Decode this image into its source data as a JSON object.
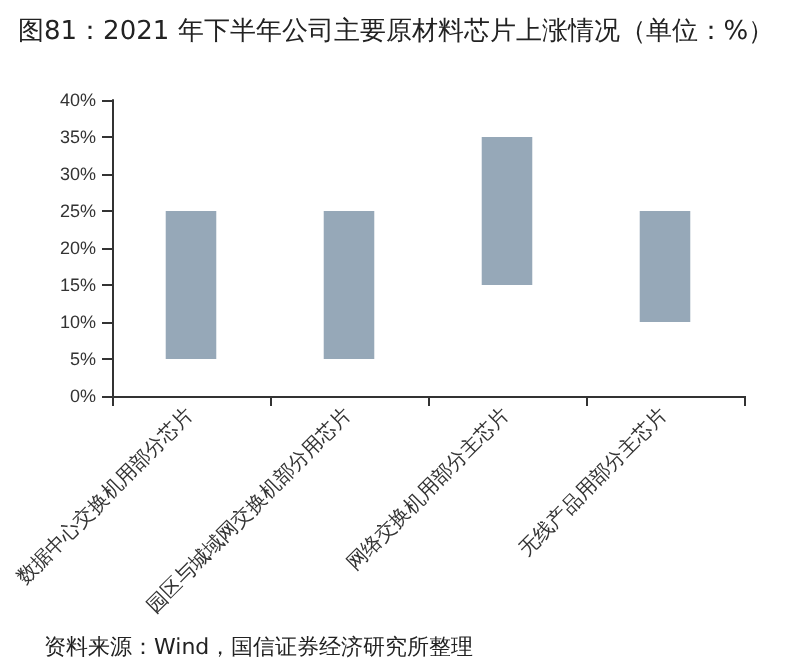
{
  "chart_data": {
    "type": "bar",
    "title": "图81：2021 年下半年公司主要原材料芯片上涨情况（单位：%）",
    "categories": [
      "数据中心交换机用部分芯片",
      "园区与城域网交换机部分用芯片",
      "网络交换机用部分主芯片",
      "无线产品用部分主芯片"
    ],
    "values": [
      20,
      20,
      20,
      15
    ],
    "base": [
      5,
      5,
      15,
      10
    ],
    "color": "#96a8b8",
    "ylim": [
      0,
      40
    ],
    "yticks": [
      {
        "value": 0,
        "label": "0%"
      },
      {
        "value": 5,
        "label": "5%"
      },
      {
        "value": 10,
        "label": "10%"
      },
      {
        "value": 15,
        "label": "15%"
      },
      {
        "value": 20,
        "label": "20%"
      },
      {
        "value": 25,
        "label": "25%"
      },
      {
        "value": 30,
        "label": "30%"
      },
      {
        "value": 35,
        "label": "35%"
      },
      {
        "value": 40,
        "label": "40%"
      }
    ],
    "grid": false,
    "annotations": [
      "资料来源：Wind，国信证券经济研究所整理"
    ]
  }
}
